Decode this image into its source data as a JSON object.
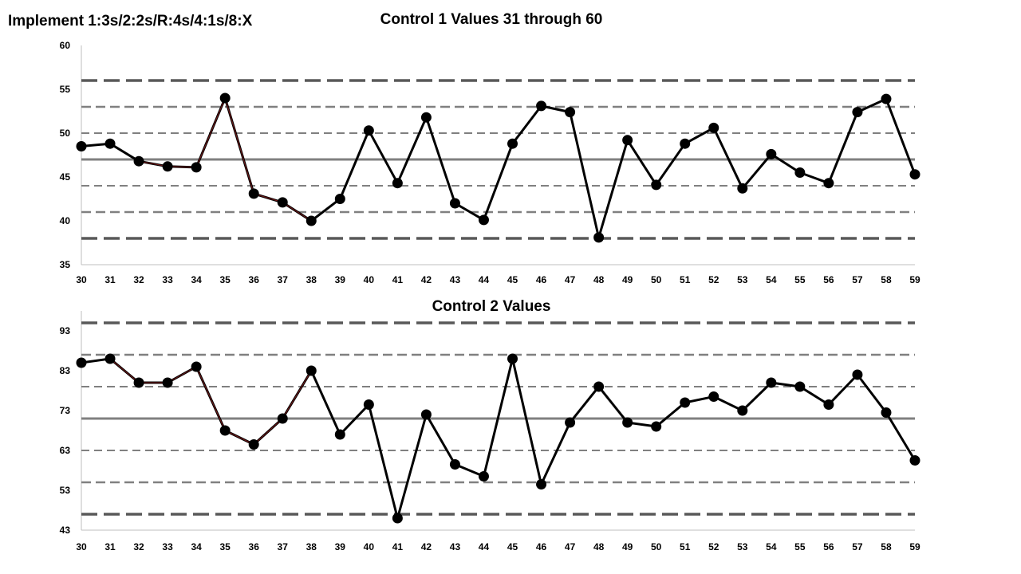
{
  "page": {
    "title": "Implement 1:3s/2:2s/R:4s/4:1s/8:X"
  },
  "colors": {
    "series_line": "#000000",
    "series_highlight": "#7a1a1a",
    "mean_line": "#808080",
    "limit_lines": "#595959",
    "inner_lines": "#808080",
    "axis": "#bfbfbf"
  },
  "chart_data": [
    {
      "type": "line",
      "title": "Control 1 Values 31 through 60",
      "x": [
        30,
        31,
        32,
        33,
        34,
        35,
        36,
        37,
        38,
        39,
        40,
        41,
        42,
        43,
        44,
        45,
        46,
        47,
        48,
        49,
        50,
        51,
        52,
        53,
        54,
        55,
        56,
        57,
        58,
        59
      ],
      "values": [
        48.5,
        48.8,
        46.8,
        46.2,
        46.1,
        54,
        43.1,
        42.1,
        40,
        42.5,
        50.3,
        44.3,
        51.8,
        42,
        40.1,
        48.8,
        53.1,
        52.4,
        38.1,
        49.2,
        44.1,
        48.8,
        50.6,
        43.7,
        47.6,
        45.5,
        44.3,
        52.4,
        53.9,
        45.3
      ],
      "ylim": [
        35,
        60
      ],
      "yticks": [
        35,
        40,
        45,
        50,
        55,
        60
      ],
      "grid": false,
      "control_lines": {
        "mean": 47,
        "sd_plus": [
          50,
          53,
          56
        ],
        "sd_minus": [
          44,
          41,
          38
        ]
      },
      "highlight_x": [
        32,
        33,
        34,
        35,
        36,
        37,
        38
      ]
    },
    {
      "type": "line",
      "title": "Control 2 Values",
      "x": [
        30,
        31,
        32,
        33,
        34,
        35,
        36,
        37,
        38,
        39,
        40,
        41,
        42,
        43,
        44,
        45,
        46,
        47,
        48,
        49,
        50,
        51,
        52,
        53,
        54,
        55,
        56,
        57,
        58,
        59
      ],
      "values": [
        85,
        86,
        80,
        80,
        84,
        68,
        64.5,
        71,
        83,
        67,
        74.5,
        46,
        72,
        59.5,
        56.5,
        86,
        54.5,
        70,
        79,
        70,
        69,
        75,
        76.5,
        73,
        80,
        79,
        74.5,
        82,
        72.5,
        60.5
      ],
      "ylim": [
        43,
        98
      ],
      "yticks": [
        43,
        53,
        63,
        73,
        83,
        93
      ],
      "grid": false,
      "control_lines": {
        "mean": 71,
        "sd_plus": [
          79,
          87,
          95
        ],
        "sd_minus": [
          63,
          55,
          47
        ]
      },
      "highlight_x": [
        31,
        32,
        33,
        34,
        35,
        36,
        37,
        38
      ]
    }
  ]
}
